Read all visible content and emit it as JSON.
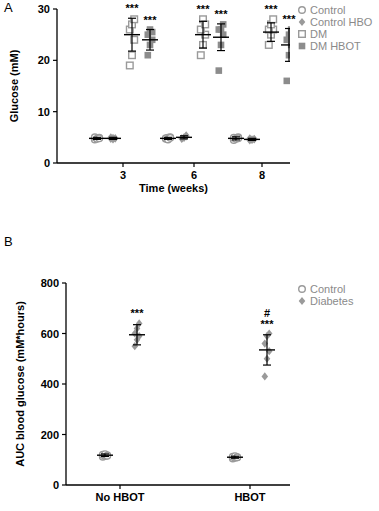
{
  "chart_data": [
    {
      "type": "dot",
      "title": "A",
      "x_label": "Time (weeks)",
      "y_label": "Glucose (mM)",
      "categories": [
        "3",
        "6",
        "8"
      ],
      "ylim": [
        0,
        30
      ],
      "yticks": [
        0,
        10,
        20,
        30
      ],
      "grid": false,
      "legend": "right",
      "series": [
        {
          "name": "Control",
          "color": "#9a9a9a",
          "marker": "circle-open",
          "values": [
            [
              4.6,
              4.8,
              4.9,
              5.0,
              4.7,
              4.8
            ],
            [
              4.7,
              4.9,
              5.0,
              4.8,
              4.6,
              4.9
            ],
            [
              4.5,
              4.8,
              5.0,
              4.9,
              4.7,
              4.8
            ]
          ],
          "means": [
            4.8,
            4.8,
            4.8
          ],
          "errors": [
            0.2,
            0.2,
            0.3
          ]
        },
        {
          "name": "Control HBO",
          "color": "#9a9a9a",
          "marker": "diamond",
          "values": [
            [
              4.7,
              4.9,
              4.8,
              5.0,
              4.6,
              4.8
            ],
            [
              4.8,
              5.0,
              5.2,
              4.7,
              4.9,
              5.4
            ],
            [
              4.4,
              4.6,
              4.7,
              4.8,
              4.5,
              4.6
            ]
          ],
          "means": [
            4.8,
            5.0,
            4.6
          ],
          "errors": [
            0.2,
            0.3,
            0.2
          ]
        },
        {
          "name": "DM",
          "color": "#9a9a9a",
          "marker": "square-open",
          "values": [
            [
              19,
              21,
              24,
              26,
              27,
              28
            ],
            [
              21,
              23,
              25,
              26,
              28,
              27
            ],
            [
              23,
              25,
              26,
              26,
              27,
              28
            ]
          ],
          "means": [
            25,
            25,
            25.5
          ],
          "errors": [
            3.2,
            2.6,
            1.8
          ],
          "annotations": [
            "***",
            "***",
            "***"
          ]
        },
        {
          "name": "DM HBOT",
          "color": "#8c8c8c",
          "marker": "square",
          "values": [
            [
              21,
              23,
              24,
              25,
              26,
              25.5
            ],
            [
              18,
              23,
              25,
              26,
              26,
              27
            ],
            [
              16,
              21,
              23,
              24,
              25,
              26
            ]
          ],
          "means": [
            24,
            24.5,
            23
          ],
          "errors": [
            2.0,
            2.6,
            3.2
          ],
          "annotations": [
            "***",
            "***",
            "***"
          ]
        }
      ]
    },
    {
      "type": "dot",
      "title": "B",
      "y_label": "AUC blood glucose (mM*hours)",
      "categories": [
        "No HBOT",
        "HBOT"
      ],
      "ylim": [
        0,
        800
      ],
      "yticks": [
        0,
        200,
        400,
        600,
        800
      ],
      "grid": false,
      "legend": "right",
      "series": [
        {
          "name": "Control",
          "color": "#9a9a9a",
          "marker": "circle-open",
          "values": [
            [
              112,
              115,
              118,
              120,
              122,
              116
            ],
            [
              105,
              108,
              110,
              112,
              114,
              110
            ]
          ],
          "means": [
            118,
            110
          ],
          "errors": [
            5,
            4
          ]
        },
        {
          "name": "Diabetes",
          "color": "#9a9a9a",
          "marker": "diamond",
          "values": [
            [
              550,
              575,
              590,
              600,
              620,
              640
            ],
            [
              430,
              500,
              530,
              560,
              590,
              600
            ]
          ],
          "means": [
            595,
            535
          ],
          "errors": [
            40,
            60
          ],
          "annotations": [
            [
              "***"
            ],
            [
              "#",
              "***"
            ]
          ]
        }
      ]
    }
  ]
}
